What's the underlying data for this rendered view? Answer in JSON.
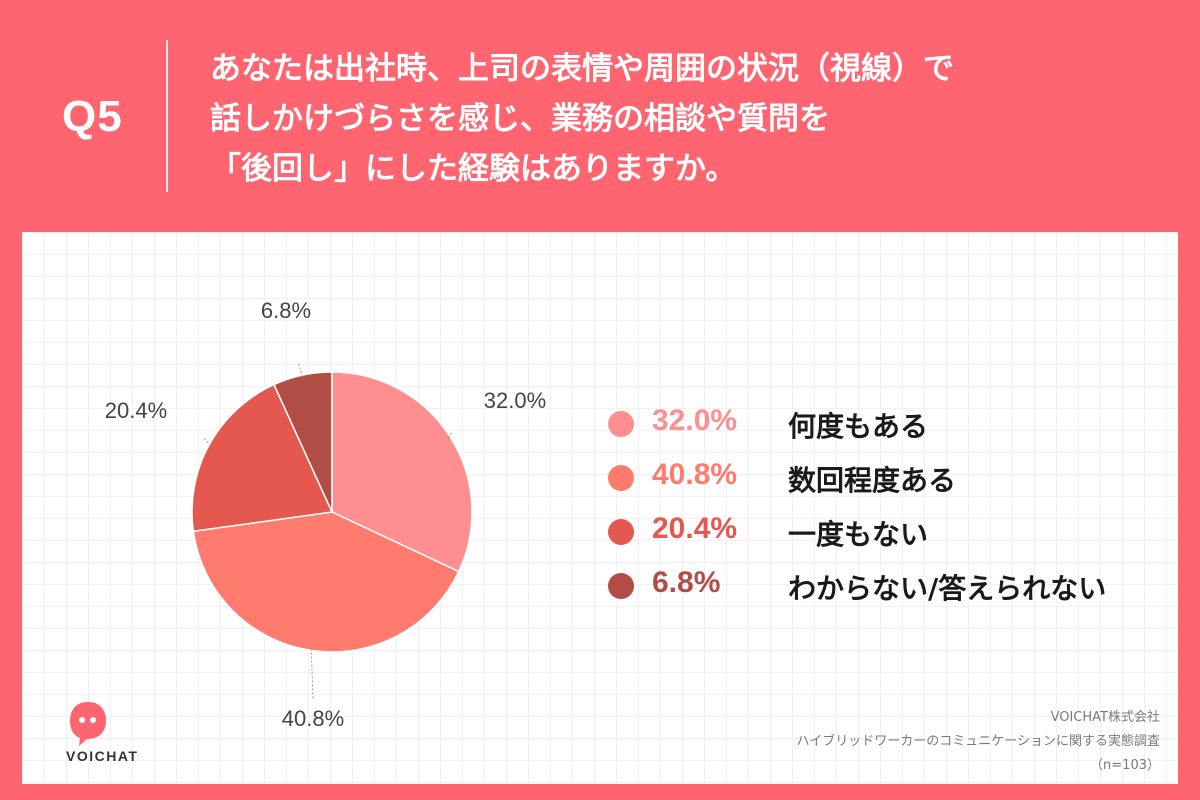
{
  "question": {
    "number": "Q5",
    "lines": [
      "あなたは出社時、上司の表情や周囲の状況（視線）で",
      "話しかけづらさを感じ、業務の相談や質問を",
      "「後回し」にした経験はありますか。"
    ]
  },
  "chart_data": {
    "type": "pie",
    "title": "あなたは出社時、上司の表情や周囲の状況（視線）で話しかけづらさを感じ、業務の相談や質問を「後回し」にした経験はありますか。",
    "categories": [
      "何度もある",
      "数回程度ある",
      "一度もない",
      "わからない/答えられない"
    ],
    "values": [
      32.0,
      40.8,
      20.4,
      6.8
    ],
    "value_labels": [
      "32.0%",
      "40.8%",
      "20.4%",
      "6.8%"
    ],
    "colors": [
      "#ff8e91",
      "#ff7b6d",
      "#e5584f",
      "#b14d44"
    ],
    "start": "12 o'clock",
    "direction": "clockwise",
    "legend_position": "right"
  },
  "legend": [
    {
      "pct": "32.0%",
      "label": "何度もある",
      "color": "#ff8e91"
    },
    {
      "pct": "40.8%",
      "label": "数回程度ある",
      "color": "#ff7b6d"
    },
    {
      "pct": "20.4%",
      "label": "一度もない",
      "color": "#e5584f"
    },
    {
      "pct": "6.8%",
      "label": "わからない/答えられない",
      "color": "#b14d44"
    }
  ],
  "brand": {
    "name": "VOICHAT",
    "icon": "voichat-logo-icon",
    "accent": "#ff6570"
  },
  "footer": {
    "company": "VOICHAT株式会社",
    "survey": "ハイブリッドワーカーのコミュニケーションに関する実態調査",
    "sample": "（n=103）"
  }
}
